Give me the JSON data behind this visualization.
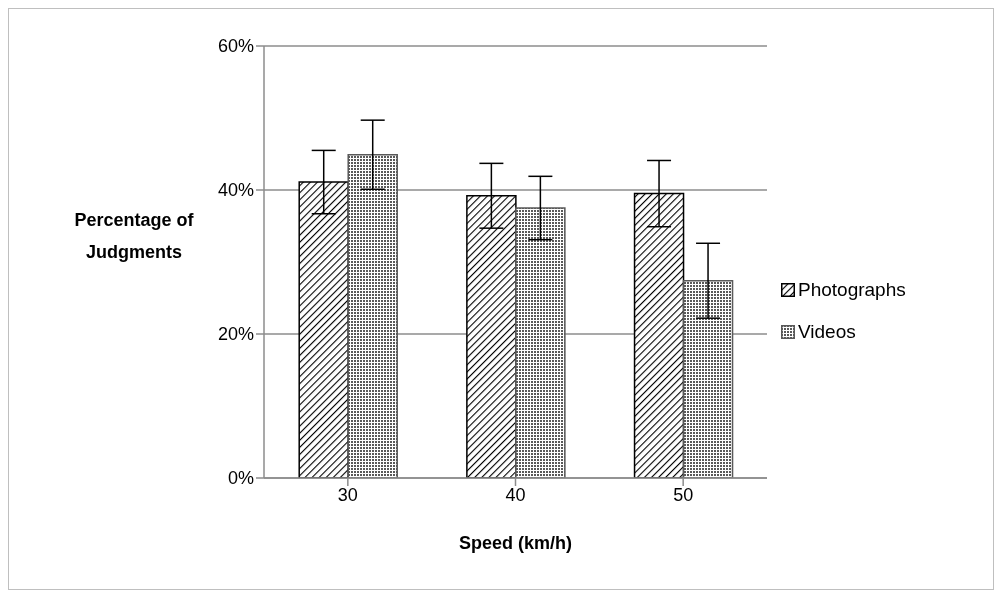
{
  "chart_data": {
    "type": "bar",
    "xlabel": "Speed (km/h)",
    "ylabel": "Percentage of Judgments",
    "categories": [
      "30",
      "40",
      "50"
    ],
    "series": [
      {
        "name": "Photographs",
        "color": "#000000",
        "values": [
          41.1,
          39.2,
          39.5
        ],
        "errors": [
          4.4,
          4.5,
          4.6
        ]
      },
      {
        "name": "Videos",
        "color": "#595959",
        "values": [
          44.9,
          37.5,
          27.4
        ],
        "errors": [
          4.8,
          4.4,
          5.2
        ]
      }
    ],
    "ylim": [
      0,
      60
    ],
    "yticks": [
      {
        "value": 0,
        "label": "0%"
      },
      {
        "value": 20,
        "label": "20%"
      },
      {
        "value": 40,
        "label": "40%"
      },
      {
        "value": 60,
        "label": "60%"
      }
    ],
    "grid": "y",
    "legend": "right"
  }
}
